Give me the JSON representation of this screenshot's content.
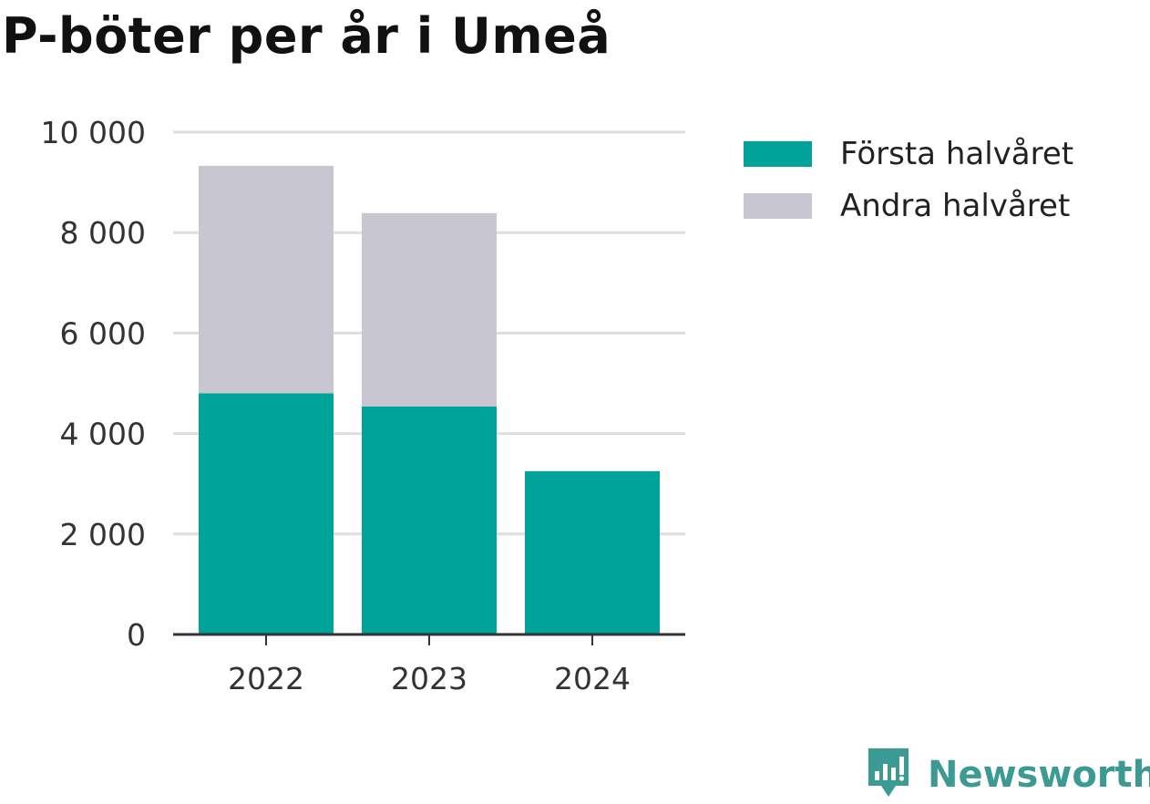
{
  "title": "P-böter per år i Umeå",
  "chart_data": {
    "type": "bar",
    "stacked": true,
    "categories": [
      "2022",
      "2023",
      "2024"
    ],
    "series": [
      {
        "name": "Första halvåret",
        "color": "#00a39a",
        "values": [
          4800,
          4540,
          3250
        ]
      },
      {
        "name": "Andra halvåret",
        "color": "#c8c7d1",
        "values": [
          4530,
          3850,
          0
        ]
      }
    ],
    "ylim": [
      0,
      10000
    ],
    "yticks": [
      0,
      2000,
      4000,
      6000,
      8000,
      10000
    ],
    "ytick_labels": [
      "0",
      "2 000",
      "4 000",
      "6 000",
      "8 000",
      "10 000"
    ],
    "grid": true,
    "legend_position": "top-right"
  },
  "legend": {
    "items": [
      {
        "label": "Första halvåret",
        "color": "#00a39a"
      },
      {
        "label": "Andra halvåret",
        "color": "#c8c7d1"
      }
    ]
  },
  "brand": {
    "name": "Newsworthy",
    "icon": "newsworthy-logo-icon",
    "color": "#3b9a94"
  }
}
